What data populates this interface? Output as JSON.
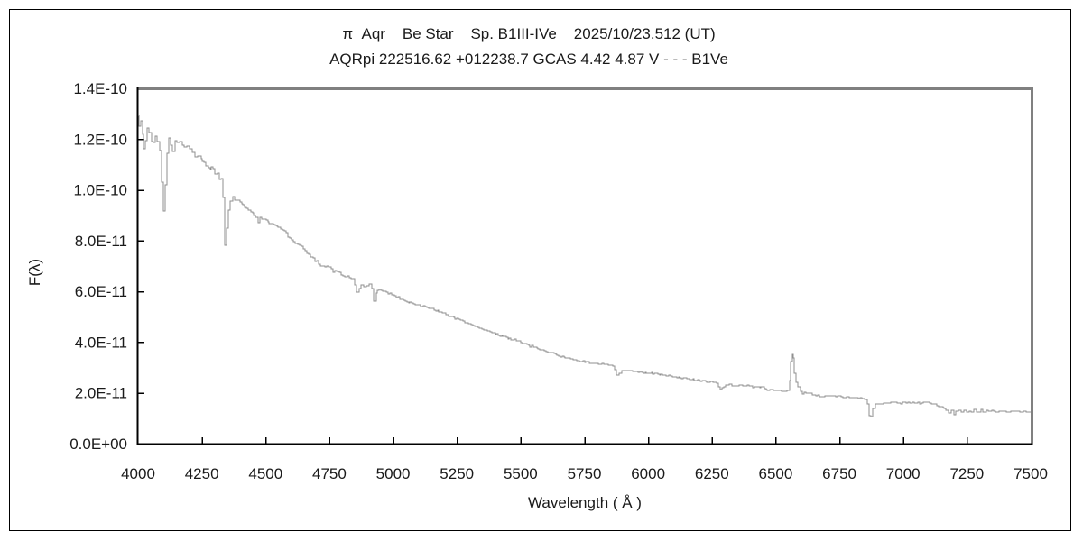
{
  "colors": {
    "background": "#ffffff",
    "outer_border": "#000000",
    "axis": "#000000",
    "frame_shadow": "#808080",
    "curve": "#8f8f8f",
    "text": "#1a1a1a"
  },
  "chart_data": {
    "type": "line",
    "title": "π  Aqr    Be Star    Sp. B1III-IVe    2025/10/23.512 (UT)",
    "subtitle": "AQRpi 222516.62 +012238.7 GCAS 4.42 4.87 V - - - B1Ve",
    "xlabel": "Wavelength ( Å )",
    "ylabel": "F(λ)",
    "xlim": [
      4000,
      7500
    ],
    "ylim": [
      0,
      1.4e-10
    ],
    "grid": false,
    "legend": "none",
    "x_ticks": [
      {
        "value": 4000,
        "label": "4000"
      },
      {
        "value": 4250,
        "label": "4250"
      },
      {
        "value": 4500,
        "label": "4500"
      },
      {
        "value": 4750,
        "label": "4750"
      },
      {
        "value": 5000,
        "label": "5000"
      },
      {
        "value": 5250,
        "label": "5250"
      },
      {
        "value": 5500,
        "label": "5500"
      },
      {
        "value": 5750,
        "label": "5750"
      },
      {
        "value": 6000,
        "label": "6000"
      },
      {
        "value": 6250,
        "label": "6250"
      },
      {
        "value": 6500,
        "label": "6500"
      },
      {
        "value": 6750,
        "label": "6750"
      },
      {
        "value": 7000,
        "label": "7000"
      },
      {
        "value": 7250,
        "label": "7250"
      },
      {
        "value": 7500,
        "label": "7500"
      }
    ],
    "y_ticks": [
      {
        "value": 0,
        "label": "0.0E+00"
      },
      {
        "value": 2e-11,
        "label": "2.0E-11"
      },
      {
        "value": 4e-11,
        "label": "4.0E-11"
      },
      {
        "value": 6e-11,
        "label": "6.0E-11"
      },
      {
        "value": 8e-11,
        "label": "8.0E-11"
      },
      {
        "value": 1e-10,
        "label": "1.0E-10"
      },
      {
        "value": 1.2e-10,
        "label": "1.2E-10"
      },
      {
        "value": 1.4e-10,
        "label": "1.4E-10"
      }
    ],
    "flux_point_scale": 1e-11,
    "features": [
      {
        "wavelength": 4101,
        "type": "absorption",
        "note": "deep dip"
      },
      {
        "wavelength": 4340,
        "type": "absorption",
        "note": "deep dip"
      },
      {
        "wavelength": 4471,
        "type": "absorption",
        "note": "dip"
      },
      {
        "wavelength": 4861,
        "type": "absorption",
        "note": "dip"
      },
      {
        "wavelength": 4922,
        "type": "absorption",
        "note": "dip"
      },
      {
        "wavelength": 5876,
        "type": "absorption",
        "note": "dip"
      },
      {
        "wavelength": 6283,
        "type": "absorption",
        "note": "dip"
      },
      {
        "wavelength": 6564,
        "type": "emission",
        "note": "narrow emission spike"
      },
      {
        "wavelength": 6870,
        "type": "absorption",
        "note": "sharp telluric dip"
      },
      {
        "wavelength": 7250,
        "type": "absorption",
        "note": "broad noisy telluric band"
      }
    ],
    "series": [
      {
        "name": "spectrum",
        "points": [
          [
            4000,
            12.95
          ],
          [
            4005,
            12.5
          ],
          [
            4010,
            12.75
          ],
          [
            4017,
            12.1
          ],
          [
            4023,
            11.7
          ],
          [
            4028,
            12.0
          ],
          [
            4036,
            12.5
          ],
          [
            4044,
            12.3
          ],
          [
            4052,
            12.0
          ],
          [
            4060,
            11.9
          ],
          [
            4068,
            12.15
          ],
          [
            4076,
            11.95
          ],
          [
            4084,
            11.5
          ],
          [
            4092,
            10.4
          ],
          [
            4100,
            9.15
          ],
          [
            4106,
            10.3
          ],
          [
            4112,
            11.5
          ],
          [
            4120,
            11.95
          ],
          [
            4128,
            11.75
          ],
          [
            4136,
            11.55
          ],
          [
            4144,
            11.9
          ],
          [
            4152,
            11.95
          ],
          [
            4162,
            11.8
          ],
          [
            4172,
            11.85
          ],
          [
            4182,
            11.7
          ],
          [
            4192,
            11.65
          ],
          [
            4202,
            11.55
          ],
          [
            4212,
            11.5
          ],
          [
            4222,
            11.4
          ],
          [
            4234,
            11.3
          ],
          [
            4246,
            11.2
          ],
          [
            4258,
            11.05
          ],
          [
            4270,
            10.95
          ],
          [
            4282,
            10.85
          ],
          [
            4294,
            10.75
          ],
          [
            4306,
            10.65
          ],
          [
            4318,
            10.5
          ],
          [
            4327,
            10.35
          ],
          [
            4334,
            9.7
          ],
          [
            4340,
            7.8
          ],
          [
            4347,
            8.5
          ],
          [
            4354,
            9.2
          ],
          [
            4362,
            9.55
          ],
          [
            4370,
            9.7
          ],
          [
            4380,
            9.6
          ],
          [
            4390,
            9.55
          ],
          [
            4400,
            9.5
          ],
          [
            4412,
            9.4
          ],
          [
            4424,
            9.3
          ],
          [
            4436,
            9.2
          ],
          [
            4448,
            9.1
          ],
          [
            4460,
            8.95
          ],
          [
            4470,
            8.7
          ],
          [
            4478,
            8.9
          ],
          [
            4490,
            8.85
          ],
          [
            4502,
            8.8
          ],
          [
            4514,
            8.72
          ],
          [
            4526,
            8.68
          ],
          [
            4538,
            8.62
          ],
          [
            4550,
            8.55
          ],
          [
            4565,
            8.4
          ],
          [
            4580,
            8.27
          ],
          [
            4595,
            8.13
          ],
          [
            4610,
            8.0
          ],
          [
            4625,
            7.87
          ],
          [
            4640,
            7.73
          ],
          [
            4655,
            7.58
          ],
          [
            4670,
            7.44
          ],
          [
            4685,
            7.3
          ],
          [
            4700,
            7.17
          ],
          [
            4716,
            7.06
          ],
          [
            4732,
            6.97
          ],
          [
            4748,
            6.9
          ],
          [
            4764,
            6.82
          ],
          [
            4780,
            6.74
          ],
          [
            4796,
            6.66
          ],
          [
            4812,
            6.6
          ],
          [
            4828,
            6.56
          ],
          [
            4840,
            6.5
          ],
          [
            4850,
            6.25
          ],
          [
            4858,
            5.95
          ],
          [
            4866,
            6.15
          ],
          [
            4875,
            6.25
          ],
          [
            4885,
            6.2
          ],
          [
            4895,
            6.18
          ],
          [
            4905,
            6.28
          ],
          [
            4915,
            6.1
          ],
          [
            4924,
            5.65
          ],
          [
            4933,
            5.95
          ],
          [
            4944,
            6.05
          ],
          [
            4958,
            6.0
          ],
          [
            4972,
            5.95
          ],
          [
            4986,
            5.9
          ],
          [
            5000,
            5.85
          ],
          [
            5020,
            5.76
          ],
          [
            5040,
            5.67
          ],
          [
            5060,
            5.57
          ],
          [
            5080,
            5.5
          ],
          [
            5100,
            5.46
          ],
          [
            5120,
            5.4
          ],
          [
            5140,
            5.34
          ],
          [
            5160,
            5.27
          ],
          [
            5180,
            5.2
          ],
          [
            5200,
            5.12
          ],
          [
            5225,
            5.02
          ],
          [
            5250,
            4.92
          ],
          [
            5275,
            4.82
          ],
          [
            5300,
            4.72
          ],
          [
            5325,
            4.62
          ],
          [
            5350,
            4.52
          ],
          [
            5375,
            4.42
          ],
          [
            5400,
            4.33
          ],
          [
            5425,
            4.25
          ],
          [
            5450,
            4.16
          ],
          [
            5475,
            4.08
          ],
          [
            5500,
            4.0
          ],
          [
            5525,
            3.9
          ],
          [
            5550,
            3.8
          ],
          [
            5575,
            3.72
          ],
          [
            5600,
            3.64
          ],
          [
            5625,
            3.56
          ],
          [
            5650,
            3.47
          ],
          [
            5675,
            3.4
          ],
          [
            5700,
            3.33
          ],
          [
            5725,
            3.26
          ],
          [
            5750,
            3.22
          ],
          [
            5775,
            3.18
          ],
          [
            5800,
            3.15
          ],
          [
            5825,
            3.12
          ],
          [
            5850,
            3.1
          ],
          [
            5862,
            3.07
          ],
          [
            5876,
            2.7
          ],
          [
            5888,
            2.74
          ],
          [
            5898,
            2.87
          ],
          [
            5912,
            2.85
          ],
          [
            5926,
            2.88
          ],
          [
            5940,
            2.84
          ],
          [
            5955,
            2.82
          ],
          [
            5975,
            2.8
          ],
          [
            6000,
            2.78
          ],
          [
            6025,
            2.74
          ],
          [
            6050,
            2.71
          ],
          [
            6075,
            2.68
          ],
          [
            6100,
            2.64
          ],
          [
            6125,
            2.6
          ],
          [
            6150,
            2.57
          ],
          [
            6175,
            2.54
          ],
          [
            6200,
            2.48
          ],
          [
            6225,
            2.46
          ],
          [
            6250,
            2.42
          ],
          [
            6268,
            2.36
          ],
          [
            6282,
            2.15
          ],
          [
            6295,
            2.27
          ],
          [
            6310,
            2.3
          ],
          [
            6330,
            2.3
          ],
          [
            6350,
            2.29
          ],
          [
            6370,
            2.28
          ],
          [
            6390,
            2.31
          ],
          [
            6410,
            2.24
          ],
          [
            6430,
            2.25
          ],
          [
            6450,
            2.22
          ],
          [
            6468,
            2.1
          ],
          [
            6484,
            2.15
          ],
          [
            6500,
            2.06
          ],
          [
            6515,
            2.1
          ],
          [
            6530,
            2.05
          ],
          [
            6545,
            2.1
          ],
          [
            6555,
            2.5
          ],
          [
            6560,
            3.2
          ],
          [
            6564,
            3.5
          ],
          [
            6569,
            3.4
          ],
          [
            6574,
            2.8
          ],
          [
            6580,
            2.4
          ],
          [
            6588,
            2.2
          ],
          [
            6596,
            2.08
          ],
          [
            6606,
            2.0
          ],
          [
            6620,
            1.98
          ],
          [
            6635,
            1.97
          ],
          [
            6650,
            1.9
          ],
          [
            6664,
            1.88
          ],
          [
            6678,
            1.84
          ],
          [
            6692,
            1.88
          ],
          [
            6706,
            1.9
          ],
          [
            6720,
            1.88
          ],
          [
            6735,
            1.86
          ],
          [
            6750,
            1.85
          ],
          [
            6770,
            1.83
          ],
          [
            6790,
            1.82
          ],
          [
            6810,
            1.8
          ],
          [
            6830,
            1.79
          ],
          [
            6850,
            1.75
          ],
          [
            6860,
            1.6
          ],
          [
            6867,
            1.1
          ],
          [
            6874,
            1.05
          ],
          [
            6881,
            1.35
          ],
          [
            6890,
            1.55
          ],
          [
            6900,
            1.58
          ],
          [
            6915,
            1.6
          ],
          [
            6930,
            1.61
          ],
          [
            6945,
            1.62
          ],
          [
            6960,
            1.62
          ],
          [
            6975,
            1.61
          ],
          [
            6990,
            1.6
          ],
          [
            7005,
            1.63
          ],
          [
            7020,
            1.64
          ],
          [
            7035,
            1.62
          ],
          [
            7050,
            1.61
          ],
          [
            7065,
            1.58
          ],
          [
            7080,
            1.6
          ],
          [
            7095,
            1.6
          ],
          [
            7110,
            1.58
          ],
          [
            7125,
            1.55
          ],
          [
            7140,
            1.48
          ],
          [
            7155,
            1.4
          ],
          [
            7168,
            1.28
          ],
          [
            7178,
            1.18
          ],
          [
            7188,
            1.3
          ],
          [
            7198,
            1.12
          ],
          [
            7208,
            1.25
          ],
          [
            7218,
            1.35
          ],
          [
            7228,
            1.22
          ],
          [
            7238,
            1.3
          ],
          [
            7248,
            1.18
          ],
          [
            7258,
            1.28
          ],
          [
            7268,
            1.2
          ],
          [
            7278,
            1.32
          ],
          [
            7288,
            1.22
          ],
          [
            7298,
            1.28
          ],
          [
            7312,
            1.3
          ],
          [
            7326,
            1.28
          ],
          [
            7340,
            1.3
          ],
          [
            7355,
            1.28
          ],
          [
            7370,
            1.27
          ],
          [
            7390,
            1.28
          ],
          [
            7410,
            1.27
          ],
          [
            7430,
            1.27
          ],
          [
            7450,
            1.26
          ],
          [
            7470,
            1.27
          ],
          [
            7490,
            1.26
          ],
          [
            7500,
            1.27
          ]
        ]
      }
    ]
  }
}
